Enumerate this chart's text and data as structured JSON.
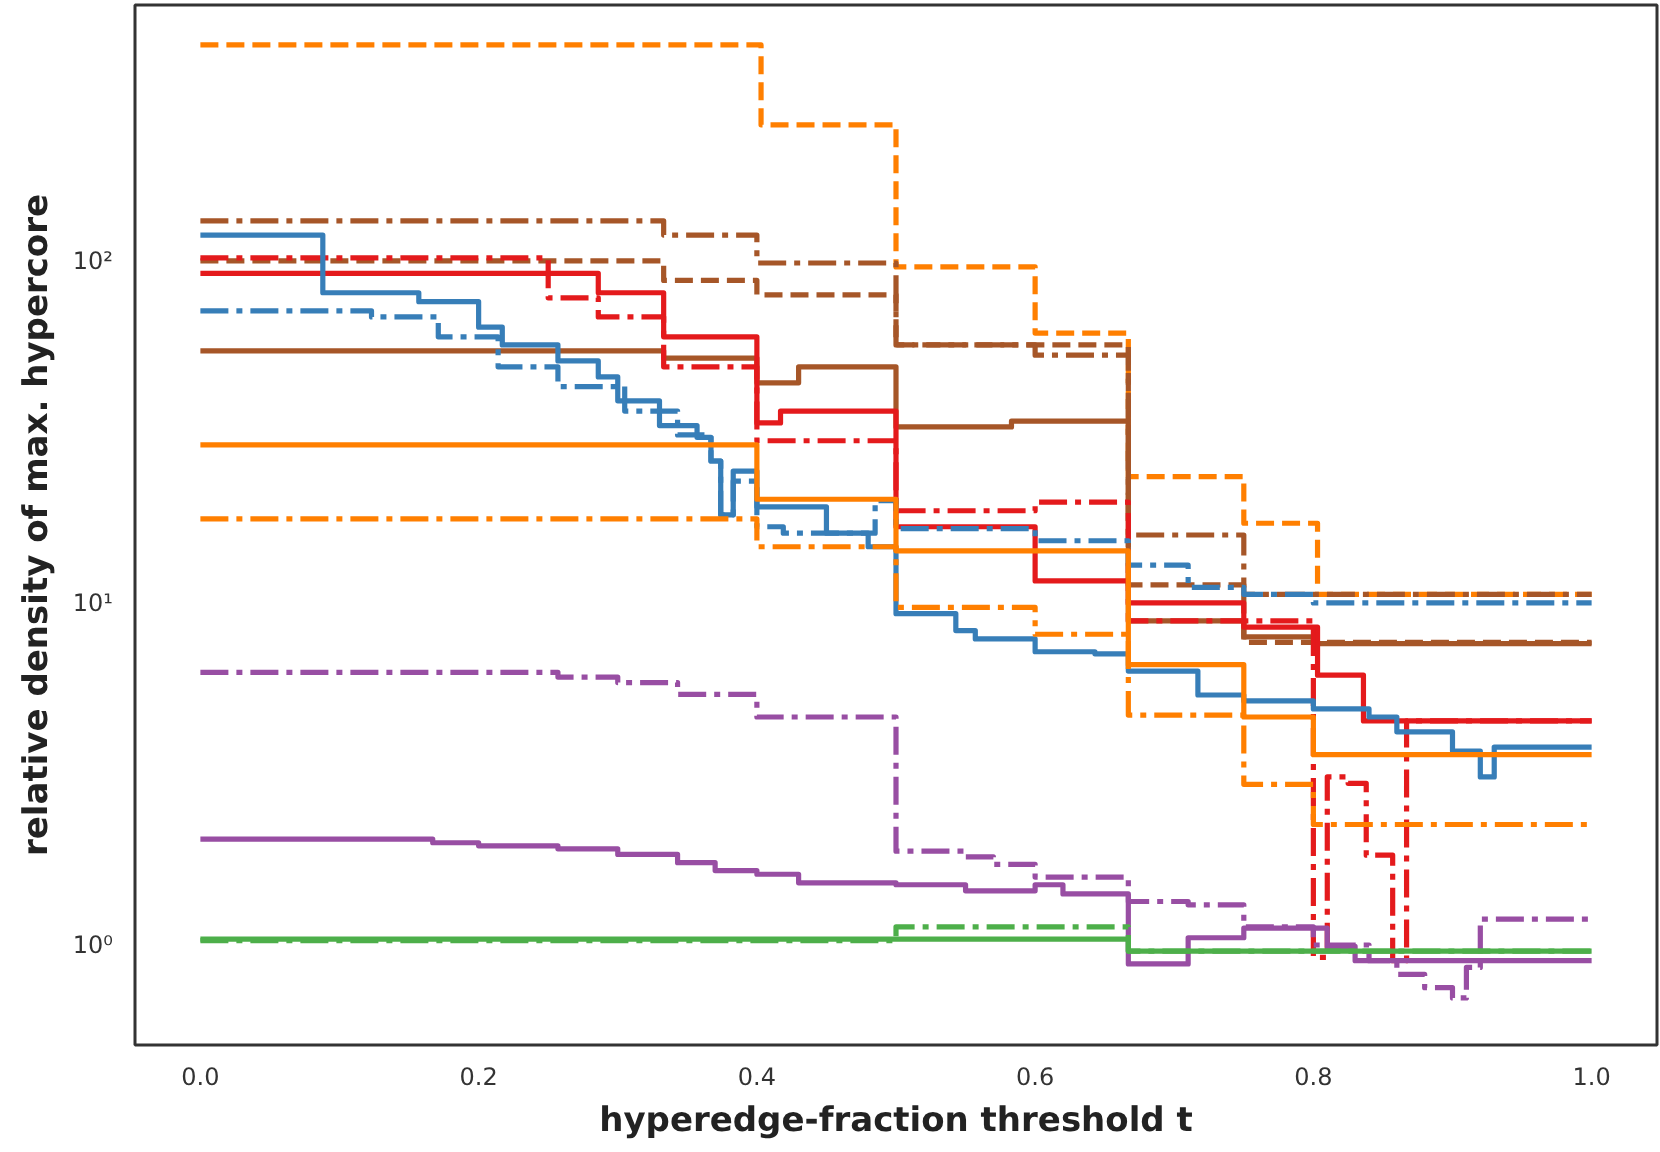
{
  "chart_data": {
    "type": "step",
    "xlabel": "hyperedge-fraction threshold t",
    "ylabel": "relative density of max. hypercore",
    "log": "y",
    "grid": false,
    "xlim": [
      -0.047,
      1.047
    ],
    "ylim": [
      0.51,
      560
    ],
    "xticks": [
      {
        "value": 0,
        "label": "0.0"
      },
      {
        "value": 0.2,
        "label": "0.2"
      },
      {
        "value": 0.4,
        "label": "0.4"
      },
      {
        "value": 0.6,
        "label": "0.6"
      },
      {
        "value": 0.8,
        "label": "0.8"
      },
      {
        "value": 1,
        "label": "1.0"
      }
    ],
    "yticks": [
      {
        "value": 1,
        "label": "10⁰"
      },
      {
        "value": 10,
        "label": "10¹"
      },
      {
        "value": 100,
        "label": "10²"
      }
    ],
    "series": [
      {
        "color": "#ff7f00",
        "line_style": "dashed",
        "x": [
          0,
          0.403,
          0.5,
          0.6,
          0.667,
          0.75,
          0.803,
          1.0
        ],
        "values": [
          428,
          250,
          96,
          61.5,
          23.4,
          17.1,
          10.6,
          10.6
        ]
      },
      {
        "color": "#a65628",
        "line_style": "dashdot",
        "x": [
          0,
          0.333,
          0.4,
          0.5,
          0.6,
          0.667,
          0.75,
          1.0
        ],
        "values": [
          131,
          119,
          98.6,
          56.8,
          53,
          15.8,
          10.6,
          10.6
        ]
      },
      {
        "color": "#a65628",
        "line_style": "dashed",
        "x": [
          0,
          0.333,
          0.4,
          0.5,
          0.667,
          0.75,
          1.0
        ],
        "values": [
          100,
          87.7,
          79.6,
          56.8,
          11.3,
          7.67,
          7.67
        ]
      },
      {
        "color": "#a65628",
        "line_style": "solid",
        "x": [
          0,
          0.333,
          0.4,
          0.43,
          0.5,
          0.583,
          0.667,
          0.75,
          0.8,
          1.0
        ],
        "values": [
          54.6,
          52,
          44,
          49,
          32.7,
          34,
          8.86,
          7.96,
          7.6,
          7.6
        ]
      },
      {
        "color": "#e41a1c",
        "line_style": "solid",
        "x": [
          0,
          0.286,
          0.333,
          0.4,
          0.417,
          0.5,
          0.6,
          0.667,
          0.75,
          0.803,
          0.836,
          1.0
        ],
        "values": [
          92,
          80.7,
          60,
          33.6,
          36.4,
          16.7,
          11.6,
          10,
          8.5,
          6.15,
          4.52,
          4.52
        ]
      },
      {
        "color": "#e41a1c",
        "line_style": "dashdot",
        "x": [
          0,
          0.25,
          0.286,
          0.333,
          0.4,
          0.5,
          0.6,
          0.667,
          0.8,
          0.81,
          0.825,
          0.838,
          0.857,
          0.867,
          1.0
        ],
        "values": [
          102,
          78,
          68.6,
          49,
          29.8,
          18.6,
          19.7,
          8.86,
          0.92,
          3.1,
          2.97,
          1.83,
          0.9,
          4.52,
          4.52
        ]
      },
      {
        "color": "#377eb8",
        "line_style": "solid",
        "x": [
          0,
          0.088,
          0.157,
          0.2,
          0.217,
          0.257,
          0.286,
          0.3,
          0.33,
          0.357,
          0.367,
          0.374,
          0.383,
          0.4,
          0.45,
          0.48,
          0.5,
          0.543,
          0.557,
          0.6,
          0.643,
          0.667,
          0.717,
          0.75,
          0.8,
          0.84,
          0.86,
          0.9,
          0.92,
          0.93,
          1.0
        ],
        "values": [
          119,
          80.7,
          76,
          64,
          56.8,
          51,
          45.8,
          39,
          33,
          30.5,
          26,
          18.1,
          24.3,
          19.1,
          16,
          14.6,
          9.3,
          8.3,
          7.85,
          7.2,
          7.1,
          6.32,
          5.38,
          5.17,
          4.9,
          4.64,
          4.2,
          3.69,
          3.1,
          3.79,
          3.79
        ]
      },
      {
        "color": "#377eb8",
        "line_style": "dashdot",
        "x": [
          0,
          0.123,
          0.171,
          0.214,
          0.257,
          0.305,
          0.343,
          0.367,
          0.374,
          0.383,
          0.4,
          0.419,
          0.485,
          0.5,
          0.6,
          0.667,
          0.71,
          0.75,
          0.8,
          1.0
        ],
        "values": [
          71.4,
          68.6,
          60,
          49,
          42.9,
          36.4,
          31,
          26,
          18.1,
          22.7,
          16.7,
          16,
          19.9,
          16.5,
          15.2,
          12.9,
          11.1,
          10.6,
          10,
          10
        ]
      },
      {
        "color": "#ff7f00",
        "line_style": "solid",
        "x": [
          0,
          0.4,
          0.5,
          0.667,
          0.75,
          0.8,
          1.0
        ],
        "values": [
          29,
          20.1,
          14.2,
          6.6,
          4.64,
          3.6,
          3.6
        ]
      },
      {
        "color": "#ff7f00",
        "line_style": "dashdot",
        "x": [
          0,
          0.4,
          0.5,
          0.6,
          0.667,
          0.75,
          0.8,
          1.0
        ],
        "values": [
          17.6,
          14.6,
          9.7,
          8.1,
          4.7,
          2.95,
          2.25,
          2.25
        ]
      },
      {
        "color": "#984ea3",
        "line_style": "dashdot",
        "x": [
          0,
          0.257,
          0.3,
          0.343,
          0.4,
          0.5,
          0.55,
          0.57,
          0.6,
          0.667,
          0.71,
          0.75,
          0.8,
          0.84,
          0.86,
          0.88,
          0.9,
          0.91,
          0.92,
          1.0
        ],
        "values": [
          6.27,
          6.07,
          5.85,
          5.4,
          4.64,
          1.88,
          1.81,
          1.72,
          1.58,
          1.34,
          1.31,
          1.13,
          1.0,
          0.9,
          0.82,
          0.75,
          0.7,
          0.86,
          1.19,
          1.19
        ]
      },
      {
        "color": "#984ea3",
        "line_style": "solid",
        "x": [
          0,
          0.167,
          0.2,
          0.257,
          0.3,
          0.343,
          0.37,
          0.4,
          0.43,
          0.5,
          0.55,
          0.6,
          0.62,
          0.667,
          0.71,
          0.75,
          0.81,
          0.83,
          1.0
        ],
        "values": [
          2.04,
          1.99,
          1.95,
          1.91,
          1.84,
          1.74,
          1.65,
          1.61,
          1.52,
          1.5,
          1.44,
          1.5,
          1.41,
          0.88,
          1.05,
          1.12,
          0.99,
          0.9,
          0.9
        ]
      },
      {
        "color": "#4daf4a",
        "line_style": "dashdot",
        "x": [
          0,
          0.5,
          0.667,
          1.0
        ],
        "values": [
          1.03,
          1.13,
          0.96,
          0.96
        ]
      },
      {
        "color": "#4daf4a",
        "line_style": "solid",
        "x": [
          0,
          0.667,
          1.0
        ],
        "values": [
          1.04,
          0.96,
          0.96
        ]
      }
    ]
  }
}
